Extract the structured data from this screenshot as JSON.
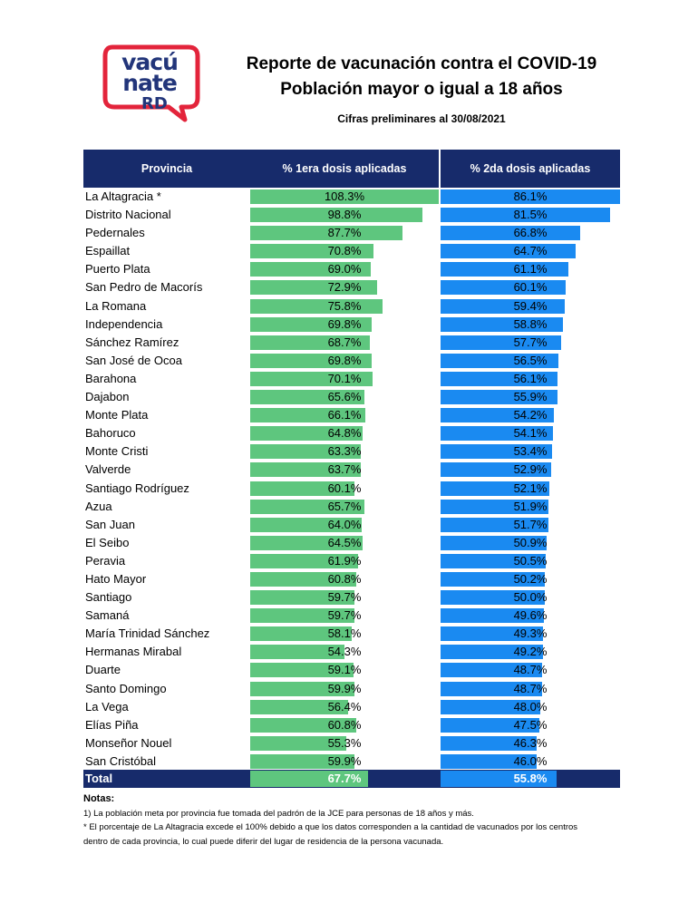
{
  "logo": {
    "line1": "vacú",
    "line2": "nate",
    "line3": "RD",
    "brand_red": "#e3243b",
    "brand_blue": "#22357a"
  },
  "header": {
    "title_line1": "Reporte de vacunación contra el COVID-19",
    "title_line2": "Población mayor o igual a 18 años",
    "subtitle": "Cifras preliminares al  30/08/2021"
  },
  "table": {
    "col_province": "Provincia",
    "col_dose1": "% 1era dosis aplicadas",
    "col_dose2": "% 2da dosis aplicadas",
    "total_label": "Total",
    "total_dose1": "67.7%",
    "total_dose2": "55.8%"
  },
  "colors": {
    "dose1": "#5ec67e",
    "dose2": "#1a8af1",
    "header": "#172b6b"
  },
  "chart_data": {
    "type": "bar",
    "title": "Reporte de vacunación contra el COVID-19 — Población mayor o igual a 18 años",
    "categories": [
      "La Altagracia *",
      "Distrito Nacional",
      "Pedernales",
      "Espaillat",
      "Puerto Plata",
      "San Pedro de Macorís",
      "La Romana",
      "Independencia",
      "Sánchez Ramírez",
      "San José de Ocoa",
      "Barahona",
      "Dajabon",
      "Monte Plata",
      "Bahoruco",
      "Monte Cristi",
      "Valverde",
      "Santiago Rodríguez",
      "Azua",
      "San Juan",
      "El Seibo",
      "Peravia",
      "Hato Mayor",
      "Santiago",
      "Samaná",
      "María Trinidad Sánchez",
      "Hermanas Mirabal",
      "Duarte",
      "Santo Domingo",
      "La Vega",
      "Elías Piña",
      "Monseñor Nouel",
      "San Cristóbal"
    ],
    "series": [
      {
        "name": "% 1era dosis aplicadas",
        "labels": [
          "108.3%",
          "98.8%",
          "87.7%",
          "70.8%",
          "69.0%",
          "72.9%",
          "75.8%",
          "69.8%",
          "68.7%",
          "69.8%",
          "70.1%",
          "65.6%",
          "66.1%",
          "64.8%",
          "63.3%",
          "63.7%",
          "60.1%",
          "65.7%",
          "64.0%",
          "64.5%",
          "61.9%",
          "60.8%",
          "59.7%",
          "59.7%",
          "58.1%",
          "54.3%",
          "59.1%",
          "59.9%",
          "56.4%",
          "60.8%",
          "55.3%",
          "59.9%"
        ],
        "values": [
          108.3,
          98.8,
          87.7,
          70.8,
          69.0,
          72.9,
          75.8,
          69.8,
          68.7,
          69.8,
          70.1,
          65.6,
          66.1,
          64.8,
          63.3,
          63.7,
          60.1,
          65.7,
          64.0,
          64.5,
          61.9,
          60.8,
          59.7,
          59.7,
          58.1,
          54.3,
          59.1,
          59.9,
          56.4,
          60.8,
          55.3,
          59.9
        ]
      },
      {
        "name": "% 2da dosis aplicadas",
        "labels": [
          "86.1%",
          "81.5%",
          "66.8%",
          "64.7%",
          "61.1%",
          "60.1%",
          "59.4%",
          "58.8%",
          "57.7%",
          "56.5%",
          "56.1%",
          "55.9%",
          "54.2%",
          "54.1%",
          "53.4%",
          "52.9%",
          "52.1%",
          "51.9%",
          "51.7%",
          "50.9%",
          "50.5%",
          "50.2%",
          "50.0%",
          "49.6%",
          "49.3%",
          "49.2%",
          "48.7%",
          "48.7%",
          "48.0%",
          "47.5%",
          "46.3%",
          "46.0%"
        ],
        "values": [
          86.1,
          81.5,
          66.8,
          64.7,
          61.1,
          60.1,
          59.4,
          58.8,
          57.7,
          56.5,
          56.1,
          55.9,
          54.2,
          54.1,
          53.4,
          52.9,
          52.1,
          51.9,
          51.7,
          50.9,
          50.5,
          50.2,
          50.0,
          49.6,
          49.3,
          49.2,
          48.7,
          48.7,
          48.0,
          47.5,
          46.3,
          46.0
        ]
      }
    ],
    "totals": {
      "dose1": 67.7,
      "dose2": 55.8
    },
    "dose1_full_scale": 108.3,
    "dose2_full_scale": 86.1
  },
  "notes": {
    "heading": "Notas:",
    "note1": "1) La población meta por provincia fue tomada del padrón de la JCE para personas de 18 años y más.",
    "note2a": "* El porcentaje de La Altagracia excede el 100% debido a que los datos corresponden a la cantidad de vacunados por los centros",
    "note2b": "dentro de cada provincia, lo cual puede diferir del lugar de residencia de la persona vacunada."
  }
}
